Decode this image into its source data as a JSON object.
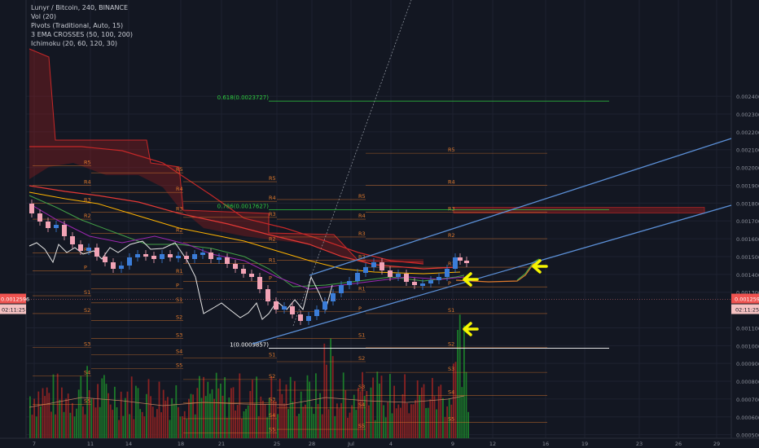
{
  "legend": {
    "symbol_line": "Lunyr / Bitcoin, 240, BINANCE",
    "indicators": [
      "Vol (20)",
      "Pivots (Traditional, Auto, 15)",
      "3 EMA CROSSES (50, 100, 200)",
      "Ichimoku (20, 60, 120, 30)"
    ]
  },
  "colors": {
    "background": "#131722",
    "grid": "#1e2230",
    "axis_text": "#8a8e99",
    "pivot_line": "#e07a2c",
    "fib_line": "#2ecc40",
    "channel_line": "#5b8fd6",
    "arrow": "#f5f500",
    "up_candle": "#3b7dd8",
    "down_candle": "#f2a3b5",
    "vol_up": "#1b7a2a",
    "vol_down": "#8a2222"
  },
  "chart_data": {
    "type": "candlestick",
    "y_axis": {
      "ylim": [
        0.00045,
        0.00245
      ],
      "ticks": [
        "0.0024000",
        "0.0023000",
        "0.0022000",
        "0.0021000",
        "0.0020000",
        "0.0019000",
        "0.0018000",
        "0.0017000",
        "0.0016000",
        "0.0015000",
        "0.0014000",
        "0.0013000",
        "0.0011000",
        "0.0010000",
        "0.0009000",
        "0.0008000",
        "0.0007000",
        "0.0006000",
        "0.0005000"
      ]
    },
    "x_axis": {
      "ticks": [
        "7",
        "11",
        "14",
        "18",
        "21",
        "25",
        "28",
        "Jul",
        "4",
        "9",
        "12",
        "16",
        "19",
        "23",
        "26",
        "29"
      ]
    },
    "current_price": {
      "value": "0.0012596",
      "countdown": "02:11:25"
    },
    "fibonacci": [
      {
        "label": "0.618(0.0023727)",
        "value": 0.0023727
      },
      {
        "label": "0.786(0.0017627)",
        "value": 0.0017627
      },
      {
        "label": "1(0.0009857)",
        "value": 0.0009857
      }
    ],
    "pivot_sets": [
      {
        "levels": [
          {
            "label": "R5",
            "value": 0.00201
          },
          {
            "label": "R4",
            "value": 0.0019
          },
          {
            "label": "R3",
            "value": 0.0018
          },
          {
            "label": "R2",
            "value": 0.00171
          },
          {
            "label": "R1",
            "value": 0.00152
          },
          {
            "label": "P",
            "value": 0.00142
          },
          {
            "label": "S1",
            "value": 0.00128
          },
          {
            "label": "S2",
            "value": 0.00118
          },
          {
            "label": "S3",
            "value": 0.00099
          },
          {
            "label": "S4",
            "value": 0.00083
          },
          {
            "label": "S5",
            "value": 0.00067
          }
        ]
      },
      {
        "levels": [
          {
            "label": "R5",
            "value": 0.00197
          },
          {
            "label": "R4",
            "value": 0.00186
          },
          {
            "label": "R3",
            "value": 0.00175
          },
          {
            "label": "R2",
            "value": 0.00163
          },
          {
            "label": "R1",
            "value": 0.0014
          },
          {
            "label": "P",
            "value": 0.00132
          },
          {
            "label": "S1",
            "value": 0.00124
          },
          {
            "label": "S2",
            "value": 0.00114
          },
          {
            "label": "S3",
            "value": 0.00104
          },
          {
            "label": "S4",
            "value": 0.00095
          },
          {
            "label": "S5",
            "value": 0.00087
          }
        ]
      },
      {
        "levels": [
          {
            "label": "R5",
            "value": 0.00192
          },
          {
            "label": "R4",
            "value": 0.00181
          },
          {
            "label": "R3",
            "value": 0.00172
          },
          {
            "label": "R2",
            "value": 0.00158
          },
          {
            "label": "R1",
            "value": 0.00146
          },
          {
            "label": "P",
            "value": 0.00136
          },
          {
            "label": "S1",
            "value": 0.00093
          },
          {
            "label": "S2",
            "value": 0.00081
          },
          {
            "label": "S3",
            "value": 0.00068
          },
          {
            "label": "S4",
            "value": 0.00059
          },
          {
            "label": "S5",
            "value": 0.00051
          }
        ]
      },
      {
        "levels": [
          {
            "label": "R5",
            "value": 0.00182
          },
          {
            "label": "R4",
            "value": 0.00171
          },
          {
            "label": "R3",
            "value": 0.00161
          },
          {
            "label": "R2",
            "value": 0.00148
          },
          {
            "label": "R1",
            "value": 0.0013
          },
          {
            "label": "P",
            "value": 0.00119
          },
          {
            "label": "S1",
            "value": 0.00104
          },
          {
            "label": "S2",
            "value": 0.00091
          },
          {
            "label": "S3",
            "value": 0.00075
          },
          {
            "label": "S4",
            "value": 0.00065
          },
          {
            "label": "S5",
            "value": 0.00053
          }
        ]
      },
      {
        "levels": [
          {
            "label": "R5",
            "value": 0.00208
          },
          {
            "label": "R4",
            "value": 0.0019
          },
          {
            "label": "R3",
            "value": 0.00175
          },
          {
            "label": "R2",
            "value": 0.0016
          },
          {
            "label": "R1",
            "value": 0.00144
          },
          {
            "label": "P",
            "value": 0.00133
          },
          {
            "label": "S1",
            "value": 0.00118
          },
          {
            "label": "S2",
            "value": 0.00099
          },
          {
            "label": "S3",
            "value": 0.00085
          },
          {
            "label": "S4",
            "value": 0.00072
          },
          {
            "label": "S5",
            "value": 0.00057
          }
        ]
      }
    ],
    "arrows": [
      "arrow-upper",
      "arrow-middle",
      "arrow-lower"
    ]
  }
}
